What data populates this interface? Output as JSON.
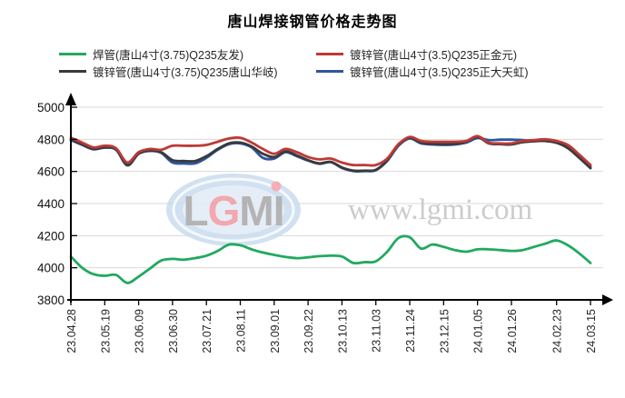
{
  "title": "唐山焊接钢管价格走势图",
  "watermark": {
    "logo_text": "LGMI",
    "url_text": "www.lgmi.com"
  },
  "chart_data": {
    "type": "line",
    "title": "唐山焊接钢管价格走势图",
    "xlabel": "",
    "ylabel": "",
    "ylim": [
      3800,
      5000
    ],
    "y_ticks": [
      3800,
      4000,
      4200,
      4400,
      4600,
      4800,
      5000
    ],
    "grid": true,
    "legend_position": "top",
    "x_labels": [
      "23.04.28",
      "23.05.19",
      "23.06.09",
      "23.06.30",
      "23.07.21",
      "23.08.11",
      "23.09.01",
      "23.09.22",
      "23.10.13",
      "23.11.03",
      "23.11.24",
      "23.12.15",
      "24.01.05",
      "24.01.26",
      "24.02.23",
      "24.03.15"
    ],
    "x_label_indices": [
      0,
      3,
      6,
      9,
      12,
      15,
      18,
      21,
      24,
      27,
      30,
      33,
      36,
      39,
      43,
      46
    ],
    "n_points": 47,
    "series": [
      {
        "name": "焊管(唐山4寸(3.75)Q235友发)",
        "color": "#21a95f",
        "values": [
          4070,
          4000,
          3960,
          3950,
          3955,
          3905,
          3945,
          3995,
          4045,
          4055,
          4050,
          4060,
          4075,
          4105,
          4145,
          4140,
          4115,
          4095,
          4080,
          4068,
          4060,
          4065,
          4072,
          4075,
          4070,
          4030,
          4035,
          4040,
          4100,
          4185,
          4190,
          4120,
          4145,
          4130,
          4110,
          4100,
          4115,
          4115,
          4110,
          4105,
          4110,
          4130,
          4150,
          4170,
          4140,
          4090,
          4030
        ]
      },
      {
        "name": "镀锌管(唐山4寸(3.5)Q235正金元)",
        "color": "#be3936",
        "values": [
          4810,
          4780,
          4750,
          4760,
          4745,
          4655,
          4720,
          4740,
          4735,
          4760,
          4760,
          4760,
          4765,
          4785,
          4805,
          4810,
          4780,
          4740,
          4710,
          4740,
          4720,
          4690,
          4675,
          4680,
          4655,
          4640,
          4640,
          4640,
          4680,
          4770,
          4815,
          4790,
          4785,
          4785,
          4785,
          4790,
          4820,
          4780,
          4775,
          4775,
          4790,
          4795,
          4800,
          4790,
          4765,
          4705,
          4640
        ]
      },
      {
        "name": "镀锌管(唐山4寸(3.75)Q235唐山华岐)",
        "color": "#3a3a3a",
        "values": [
          4800,
          4770,
          4740,
          4750,
          4738,
          4640,
          4712,
          4730,
          4720,
          4670,
          4665,
          4665,
          4695,
          4740,
          4775,
          4780,
          4755,
          4710,
          4690,
          4725,
          4700,
          4670,
          4650,
          4660,
          4625,
          4605,
          4605,
          4610,
          4670,
          4765,
          4810,
          4780,
          4772,
          4770,
          4772,
          4785,
          4815,
          4775,
          4770,
          4768,
          4782,
          4788,
          4790,
          4778,
          4745,
          4685,
          4620
        ]
      },
      {
        "name": "镀锌管(唐山4寸(3.5)Q235正大天虹)",
        "color": "#2c56a0",
        "values": [
          4795,
          4765,
          4738,
          4748,
          4735,
          4638,
          4710,
          4728,
          4715,
          4655,
          4650,
          4650,
          4685,
          4735,
          4770,
          4775,
          4750,
          4685,
          4680,
          4720,
          4695,
          4668,
          4648,
          4658,
          4622,
          4602,
          4602,
          4608,
          4665,
          4760,
          4805,
          4775,
          4768,
          4765,
          4768,
          4780,
          4808,
          4795,
          4798,
          4798,
          4795,
          4790,
          4790,
          4780,
          4755,
          4695,
          4630
        ]
      }
    ]
  }
}
